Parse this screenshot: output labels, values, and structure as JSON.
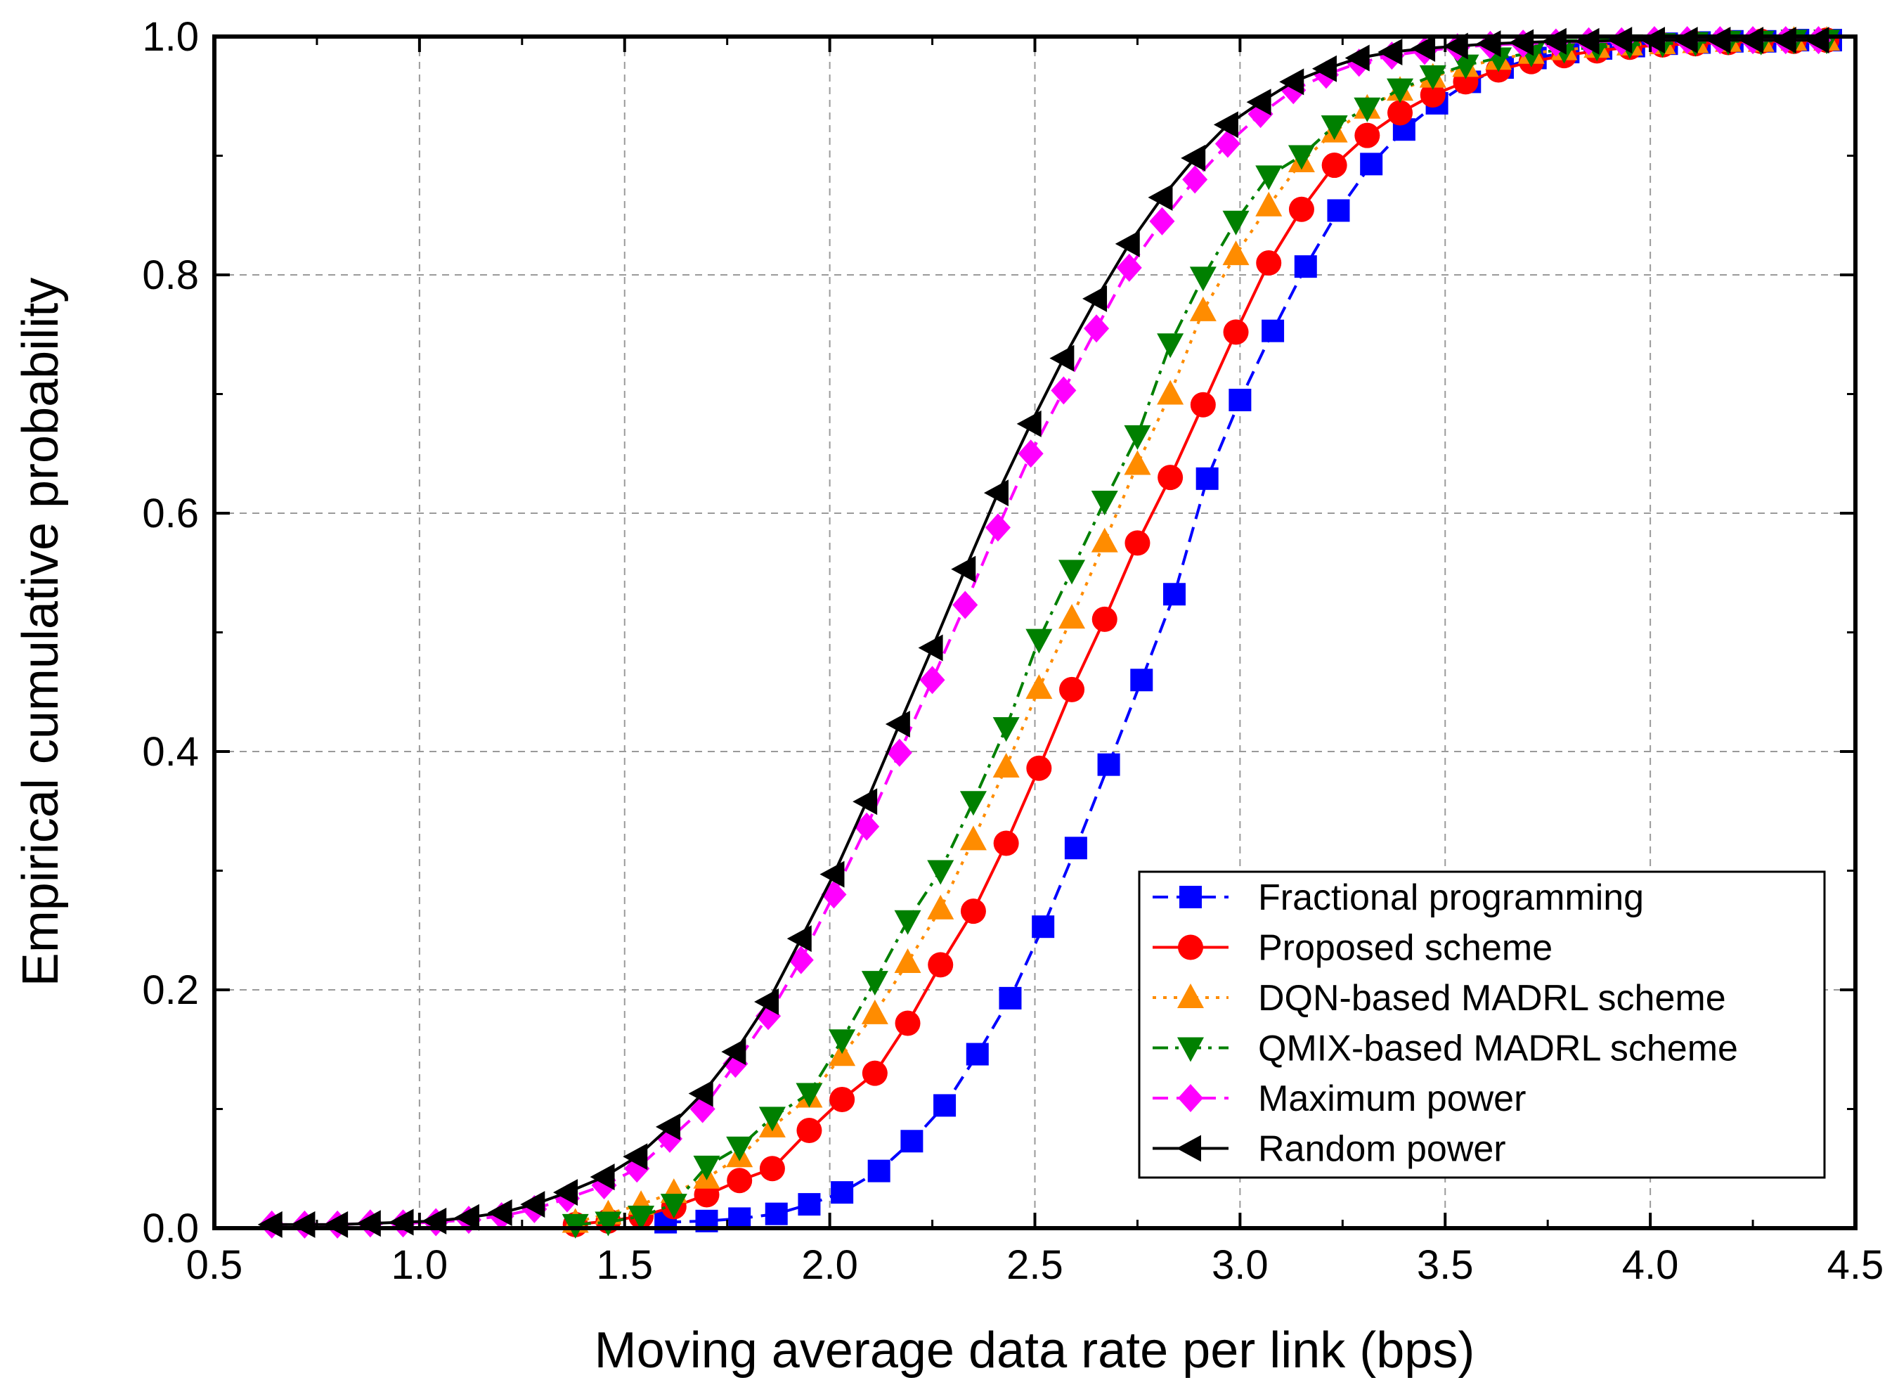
{
  "chart_data": {
    "type": "line",
    "title": "",
    "xlabel": "Moving average data rate per link (bps)",
    "ylabel": "Empirical cumulative probability",
    "xlim": [
      0.5,
      4.5
    ],
    "ylim": [
      0.0,
      1.0
    ],
    "xticks": [
      "0.5",
      "1.0",
      "1.5",
      "2.0",
      "2.5",
      "3.0",
      "3.5",
      "4.0",
      "4.5"
    ],
    "yticks": [
      "0.0",
      "0.2",
      "0.4",
      "0.6",
      "0.8",
      "1.0"
    ],
    "grid": true,
    "legend_position": "bottom-right",
    "series": [
      {
        "name": "Fractional programming",
        "color": "#0000ff",
        "dash": "dashed",
        "marker": "square",
        "x": [
          1.6,
          1.7,
          1.78,
          1.87,
          1.95,
          2.03,
          2.12,
          2.2,
          2.28,
          2.36,
          2.44,
          2.52,
          2.6,
          2.68,
          2.76,
          2.84,
          2.92,
          3.0,
          3.08,
          3.16,
          3.24,
          3.32,
          3.4,
          3.48,
          3.56,
          3.64,
          3.72,
          3.8,
          3.88,
          3.96,
          4.04,
          4.12,
          4.2,
          4.28,
          4.36,
          4.44
        ],
        "y": [
          0.005,
          0.006,
          0.008,
          0.012,
          0.02,
          0.03,
          0.048,
          0.073,
          0.103,
          0.146,
          0.193,
          0.253,
          0.319,
          0.389,
          0.46,
          0.532,
          0.629,
          0.695,
          0.753,
          0.807,
          0.854,
          0.893,
          0.922,
          0.944,
          0.962,
          0.974,
          0.982,
          0.987,
          0.99,
          0.992,
          0.994,
          0.995,
          0.996,
          0.996,
          0.997,
          0.997
        ]
      },
      {
        "name": "Proposed scheme",
        "color": "#ff0000",
        "dash": "solid",
        "marker": "circle",
        "x": [
          1.38,
          1.46,
          1.54,
          1.62,
          1.7,
          1.78,
          1.86,
          1.95,
          2.03,
          2.11,
          2.19,
          2.27,
          2.35,
          2.43,
          2.51,
          2.59,
          2.67,
          2.75,
          2.83,
          2.91,
          2.99,
          3.07,
          3.15,
          3.23,
          3.31,
          3.39,
          3.47,
          3.55,
          3.63,
          3.71,
          3.79,
          3.87,
          3.95,
          4.03,
          4.11,
          4.19,
          4.27,
          4.35,
          4.43
        ],
        "y": [
          0.003,
          0.006,
          0.01,
          0.018,
          0.028,
          0.04,
          0.05,
          0.082,
          0.108,
          0.13,
          0.172,
          0.221,
          0.266,
          0.323,
          0.386,
          0.452,
          0.511,
          0.575,
          0.63,
          0.691,
          0.752,
          0.81,
          0.855,
          0.892,
          0.917,
          0.936,
          0.951,
          0.962,
          0.972,
          0.979,
          0.984,
          0.988,
          0.991,
          0.993,
          0.994,
          0.995,
          0.996,
          0.996,
          0.997
        ]
      },
      {
        "name": "DQN-based MADRL scheme",
        "color": "#ff8c00",
        "dash": "dotted",
        "marker": "triangle-up",
        "x": [
          1.38,
          1.46,
          1.54,
          1.62,
          1.7,
          1.78,
          1.86,
          1.95,
          2.03,
          2.11,
          2.19,
          2.27,
          2.35,
          2.43,
          2.51,
          2.59,
          2.67,
          2.75,
          2.83,
          2.91,
          2.99,
          3.07,
          3.15,
          3.23,
          3.31,
          3.39,
          3.47,
          3.55,
          3.63,
          3.71,
          3.79,
          3.87,
          3.95,
          4.03,
          4.11,
          4.19,
          4.27,
          4.35,
          4.43
        ],
        "y": [
          0.005,
          0.012,
          0.02,
          0.03,
          0.042,
          0.06,
          0.085,
          0.11,
          0.145,
          0.18,
          0.223,
          0.268,
          0.326,
          0.387,
          0.453,
          0.512,
          0.576,
          0.641,
          0.7,
          0.77,
          0.817,
          0.858,
          0.895,
          0.92,
          0.94,
          0.955,
          0.966,
          0.975,
          0.981,
          0.986,
          0.989,
          0.991,
          0.993,
          0.994,
          0.995,
          0.996,
          0.996,
          0.997,
          0.997
        ]
      },
      {
        "name": "QMIX-based MADRL scheme",
        "color": "#008000",
        "dash": "dashdot",
        "marker": "triangle-down",
        "x": [
          1.38,
          1.46,
          1.54,
          1.62,
          1.7,
          1.78,
          1.86,
          1.95,
          2.03,
          2.11,
          2.19,
          2.27,
          2.35,
          2.43,
          2.51,
          2.59,
          2.67,
          2.75,
          2.83,
          2.91,
          2.99,
          3.07,
          3.15,
          3.23,
          3.31,
          3.39,
          3.47,
          3.55,
          3.63,
          3.71,
          3.79,
          3.87,
          3.95,
          4.03,
          4.11,
          4.19,
          4.27,
          4.35,
          4.43
        ],
        "y": [
          0.003,
          0.005,
          0.01,
          0.02,
          0.052,
          0.068,
          0.093,
          0.113,
          0.158,
          0.207,
          0.258,
          0.3,
          0.358,
          0.42,
          0.494,
          0.552,
          0.61,
          0.665,
          0.742,
          0.798,
          0.845,
          0.883,
          0.9,
          0.925,
          0.94,
          0.956,
          0.967,
          0.976,
          0.982,
          0.986,
          0.989,
          0.991,
          0.993,
          0.994,
          0.995,
          0.996,
          0.996,
          0.997,
          0.997
        ]
      },
      {
        "name": "Maximum power",
        "color": "#ff00ff",
        "dash": "dashed",
        "marker": "diamond",
        "x": [
          0.64,
          0.72,
          0.8,
          0.88,
          0.96,
          1.04,
          1.12,
          1.2,
          1.28,
          1.36,
          1.45,
          1.53,
          1.61,
          1.69,
          1.77,
          1.85,
          1.93,
          2.01,
          2.09,
          2.17,
          2.25,
          2.33,
          2.41,
          2.49,
          2.57,
          2.65,
          2.73,
          2.81,
          2.89,
          2.97,
          3.05,
          3.13,
          3.21,
          3.29,
          3.37,
          3.45,
          3.53,
          3.61,
          3.69,
          3.77,
          3.85,
          3.93,
          4.01,
          4.09,
          4.17,
          4.25,
          4.33,
          4.41
        ],
        "y": [
          0.003,
          0.003,
          0.003,
          0.004,
          0.004,
          0.005,
          0.007,
          0.01,
          0.016,
          0.025,
          0.036,
          0.05,
          0.075,
          0.1,
          0.138,
          0.178,
          0.225,
          0.28,
          0.337,
          0.399,
          0.46,
          0.523,
          0.588,
          0.65,
          0.703,
          0.755,
          0.806,
          0.845,
          0.88,
          0.91,
          0.935,
          0.955,
          0.968,
          0.978,
          0.984,
          0.988,
          0.991,
          0.993,
          0.994,
          0.995,
          0.996,
          0.996,
          0.997,
          0.997,
          0.997,
          0.997,
          0.997,
          0.997
        ]
      },
      {
        "name": "Random power",
        "color": "#000000",
        "dash": "solid",
        "marker": "triangle-left",
        "x": [
          0.64,
          0.72,
          0.8,
          0.88,
          0.96,
          1.04,
          1.12,
          1.2,
          1.28,
          1.36,
          1.45,
          1.53,
          1.61,
          1.69,
          1.77,
          1.85,
          1.93,
          2.01,
          2.09,
          2.17,
          2.25,
          2.33,
          2.41,
          2.49,
          2.57,
          2.65,
          2.73,
          2.81,
          2.89,
          2.97,
          3.05,
          3.13,
          3.21,
          3.29,
          3.37,
          3.45,
          3.53,
          3.61,
          3.69,
          3.77,
          3.85,
          3.93,
          4.01,
          4.09,
          4.17,
          4.25,
          4.33,
          4.41
        ],
        "y": [
          0.003,
          0.003,
          0.003,
          0.004,
          0.005,
          0.006,
          0.009,
          0.013,
          0.02,
          0.03,
          0.043,
          0.06,
          0.085,
          0.113,
          0.148,
          0.19,
          0.243,
          0.297,
          0.358,
          0.423,
          0.487,
          0.553,
          0.617,
          0.675,
          0.73,
          0.78,
          0.826,
          0.865,
          0.898,
          0.926,
          0.945,
          0.962,
          0.973,
          0.982,
          0.987,
          0.99,
          0.992,
          0.994,
          0.995,
          0.996,
          0.996,
          0.997,
          0.997,
          0.997,
          0.997,
          0.997,
          0.997,
          0.997
        ]
      }
    ]
  }
}
